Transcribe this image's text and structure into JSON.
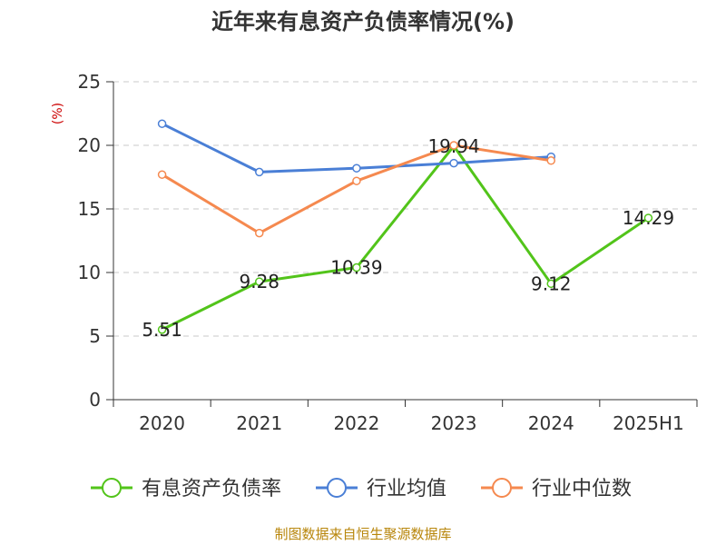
{
  "chart_data": {
    "type": "line",
    "title": "近年来有息资产负债率情况(%)",
    "ylabel": "(%)",
    "xlabel": "",
    "categories": [
      "2020",
      "2021",
      "2022",
      "2023",
      "2024",
      "2025H1"
    ],
    "ylim": [
      0,
      25
    ],
    "yticks": [
      0,
      5,
      10,
      15,
      20,
      25
    ],
    "grid": true,
    "legend_position": "bottom",
    "series": [
      {
        "name": "有息资产负债率",
        "color": "#52c41a",
        "values": [
          5.51,
          9.28,
          10.39,
          19.94,
          9.12,
          14.29
        ],
        "labels": [
          "5.51",
          "9.28",
          "10.39",
          "19.94",
          "9.12",
          "14.29"
        ]
      },
      {
        "name": "行业均值",
        "color": "#4a7fd6",
        "values": [
          21.7,
          17.9,
          18.2,
          18.6,
          19.1,
          null
        ]
      },
      {
        "name": "行业中位数",
        "color": "#f5894f",
        "values": [
          17.7,
          13.1,
          17.2,
          20.0,
          18.8,
          null
        ]
      }
    ]
  },
  "source": "制图数据来自恒生聚源数据库"
}
